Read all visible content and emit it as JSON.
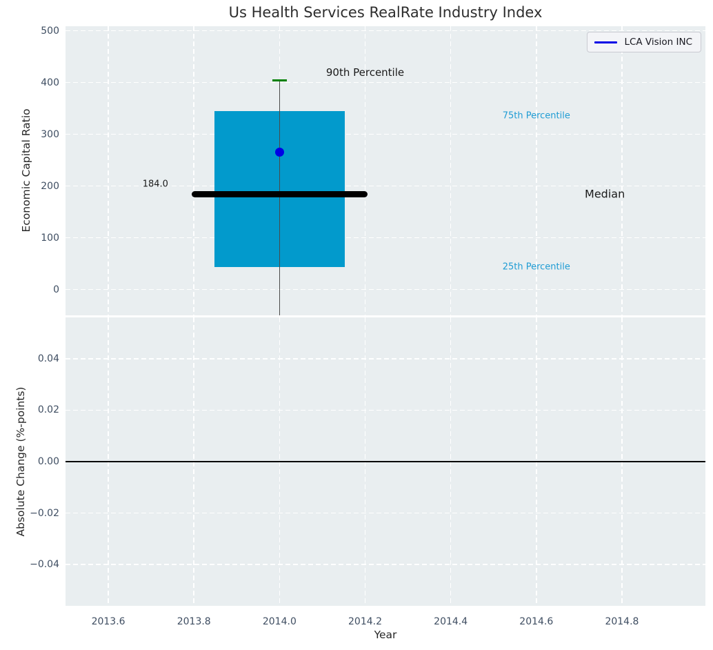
{
  "title": "Us Health Services RealRate Industry Index",
  "legend": {
    "label": "LCA Vision INC",
    "line_color": "#0000e6"
  },
  "colors": {
    "figure_bg": "#ffffff",
    "plot_bg": "#e9eef0",
    "grid": "#ffffff",
    "tick_label": "#3e4d61",
    "axis_label": "#262626",
    "title": "#2d2d2d",
    "box_fill": "#029acc",
    "median_line": "#000000",
    "whisker": "#4a4a4a",
    "cap_90th": "#008000",
    "company_dot": "#0000e6",
    "percentile_label": "#1f9cd4",
    "zero_line": "#000000"
  },
  "chart_data": [
    {
      "type": "box",
      "title": "Us Health Services RealRate Industry Index",
      "ylabel": "Economic Capital Ratio",
      "grid": true,
      "xlim": [
        2013.5,
        2014.995
      ],
      "ylim": [
        -50,
        509
      ],
      "xticks": [
        2013.6,
        2013.8,
        2014.0,
        2014.2,
        2014.4,
        2014.6,
        2014.8
      ],
      "xtick_labels": [
        "2013.6",
        "2013.8",
        "2014.0",
        "2014.2",
        "2014.4",
        "2014.6",
        "2014.8"
      ],
      "yticks": [
        0,
        100,
        200,
        300,
        400,
        500
      ],
      "ytick_labels": [
        "0",
        "100",
        "200",
        "300",
        "400",
        "500"
      ],
      "box": {
        "x": 2014.0,
        "q25": 44,
        "median": 184.0,
        "q75": 345,
        "p90": 404,
        "box_width": 0.305,
        "median_width": 0.41,
        "cap_width": 0.034,
        "whisker_clipped_below": true
      },
      "company_point": {
        "name": "LCA Vision INC",
        "x": 2014.0,
        "y": 266
      },
      "annotations": [
        {
          "text": "90th Percentile",
          "x": 2014.2,
          "y": 419,
          "color": "#1a1a1a",
          "size": 15
        },
        {
          "text": "75th Percentile",
          "x": 2014.6,
          "y": 336,
          "color": "#1f9cd4",
          "size": 13
        },
        {
          "text": "Median",
          "x": 2014.76,
          "y": 185,
          "color": "#1a1a1a",
          "size": 16
        },
        {
          "text": "25th Percentile",
          "x": 2014.6,
          "y": 44,
          "color": "#1f9cd4",
          "size": 13
        },
        {
          "text": "184.0",
          "x": 2013.71,
          "y": 203,
          "color": "#1a1a1a",
          "size": 13
        }
      ],
      "legend_entries": [
        "LCA Vision INC"
      ],
      "legend_position": "upper right"
    },
    {
      "type": "line",
      "ylabel": "Absolute Change (%-points)",
      "xlabel": "Year",
      "grid": true,
      "xlim": [
        2013.5,
        2014.995
      ],
      "ylim": [
        -0.0561,
        0.0561
      ],
      "xticks": [
        2013.6,
        2013.8,
        2014.0,
        2014.2,
        2014.4,
        2014.6,
        2014.8
      ],
      "xtick_labels": [
        "2013.6",
        "2013.8",
        "2014.0",
        "2014.2",
        "2014.4",
        "2014.6",
        "2014.8"
      ],
      "yticks": [
        0.04,
        0.02,
        0.0,
        -0.02,
        -0.04
      ],
      "ytick_labels": [
        "0.04",
        "0.02",
        "0.00",
        "−0.02",
        "−0.04"
      ],
      "zero_line": 0.0,
      "series": []
    }
  ]
}
